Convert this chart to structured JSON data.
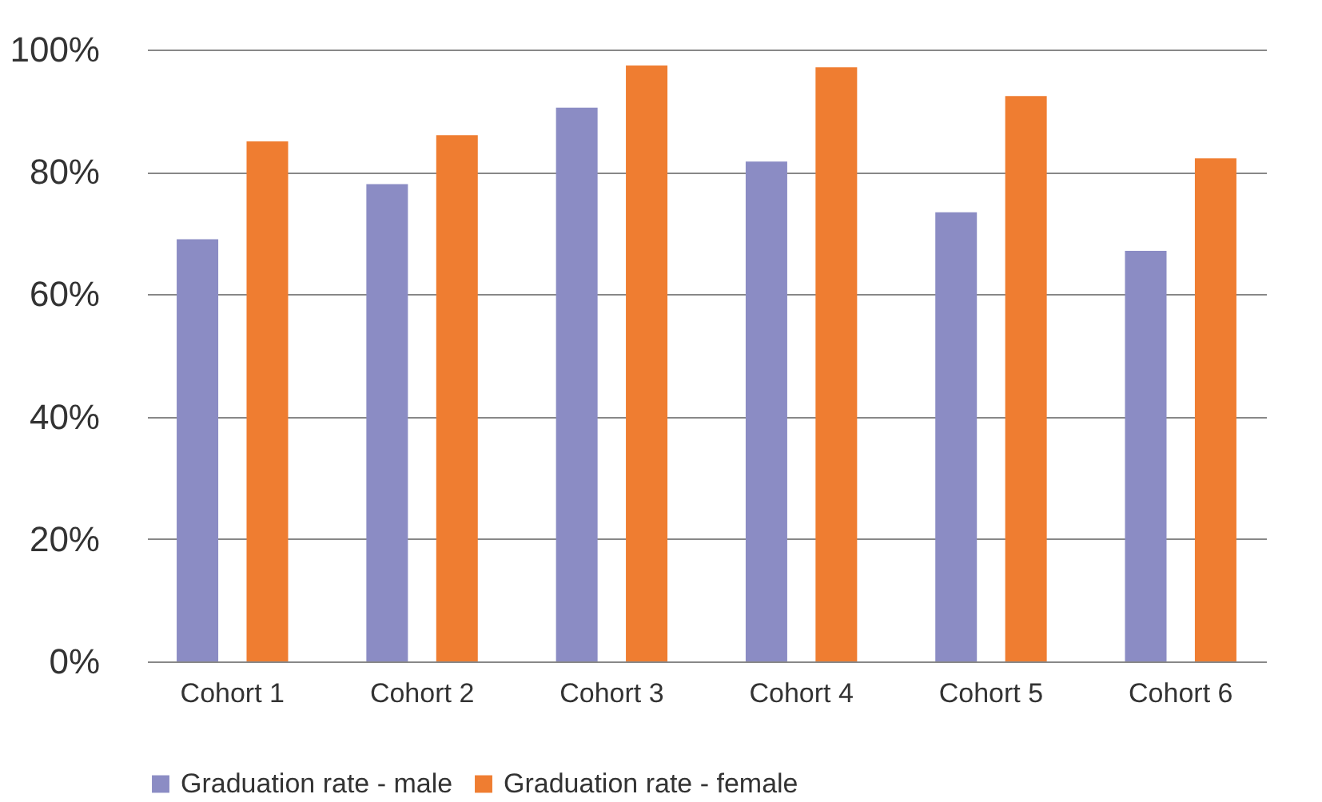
{
  "chart_data": {
    "type": "bar",
    "categories": [
      "Cohort 1",
      "Cohort 2",
      "Cohort 3",
      "Cohort 4",
      "Cohort 5",
      "Cohort 6"
    ],
    "series": [
      {
        "name": "Graduation rate - male",
        "color": "#8b8cc4",
        "values": [
          69,
          78,
          90.5,
          81.7,
          73.4,
          67.1
        ]
      },
      {
        "name": "Graduation rate - female",
        "color": "#ef7d31",
        "values": [
          85,
          86,
          97.4,
          97.1,
          92.4,
          82.2
        ]
      }
    ],
    "ylim": [
      0,
      100
    ],
    "yticks": [
      {
        "value": 0,
        "label": "0%"
      },
      {
        "value": 20,
        "label": "20%"
      },
      {
        "value": 40,
        "label": "40%"
      },
      {
        "value": 60,
        "label": "60%"
      },
      {
        "value": 80,
        "label": "80%"
      },
      {
        "value": 100,
        "label": "100%"
      }
    ],
    "grid": "y",
    "legend": "bottom"
  }
}
